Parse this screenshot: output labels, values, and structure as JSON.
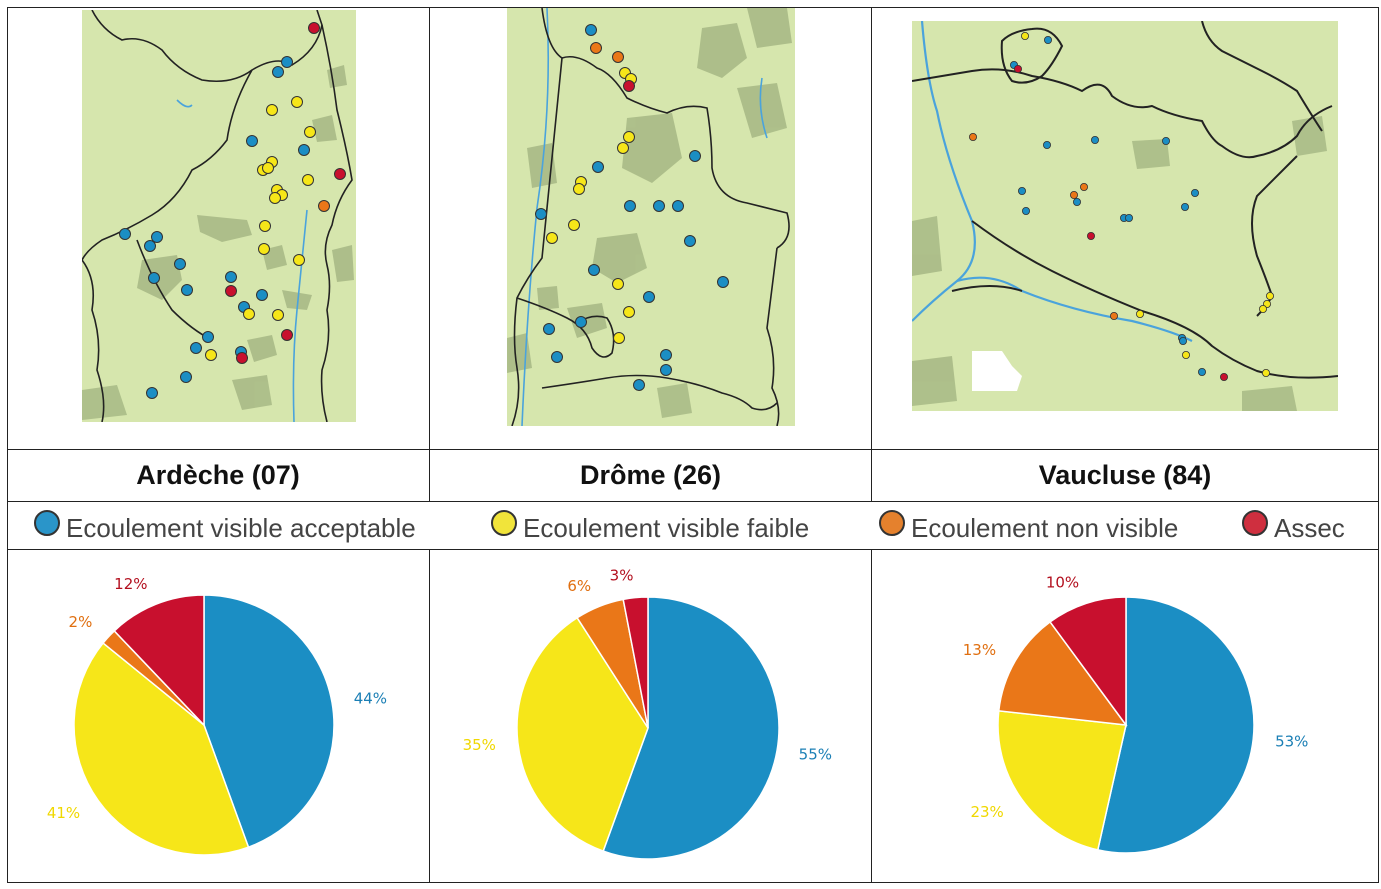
{
  "colors": {
    "acceptable": "#1b8ec4",
    "faible": "#f6e619",
    "non_visible": "#ea7718",
    "assec": "#c8102e",
    "land": "#d6e6ad",
    "forest": "#9fb27a",
    "water": "#4aa3dc",
    "border": "#222222"
  },
  "legend": [
    {
      "key": "acceptable",
      "label": "Ecoulement visible acceptable",
      "color": "#2a95c9"
    },
    {
      "key": "faible",
      "label": "Ecoulement visible faible",
      "color": "#f1e43a"
    },
    {
      "key": "non_visible",
      "label": "Ecoulement non visible",
      "color": "#e5812d"
    },
    {
      "key": "assec",
      "label": "Assec",
      "color": "#cf2f3f"
    }
  ],
  "regions": [
    {
      "name": "Ardèche (07)"
    },
    {
      "name": "Drôme (26)"
    },
    {
      "name": "Vaucluse (84)"
    }
  ],
  "chart_data": [
    {
      "type": "pie",
      "title": "Ardèche (07)",
      "categories": [
        "Ecoulement visible acceptable",
        "Ecoulement visible faible",
        "Ecoulement non visible",
        "Assec"
      ],
      "values": [
        44,
        41,
        2,
        12
      ],
      "labels": [
        "44%",
        "41%",
        "2%",
        "12%"
      ]
    },
    {
      "type": "pie",
      "title": "Drôme (26)",
      "categories": [
        "Ecoulement visible acceptable",
        "Ecoulement visible faible",
        "Ecoulement non visible",
        "Assec"
      ],
      "values": [
        55,
        35,
        6,
        3
      ],
      "labels": [
        "55%",
        "35%",
        "6%",
        "3%"
      ]
    },
    {
      "type": "pie",
      "title": "Vaucluse (84)",
      "categories": [
        "Ecoulement visible acceptable",
        "Ecoulement visible faible",
        "Ecoulement non visible",
        "Assec"
      ],
      "values": [
        53,
        23,
        13,
        10
      ],
      "labels": [
        "53%",
        "23%",
        "13%",
        "10%"
      ]
    }
  ]
}
